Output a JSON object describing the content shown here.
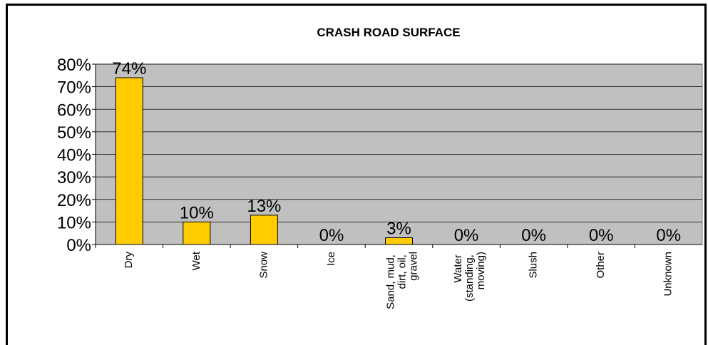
{
  "chart_data": {
    "type": "bar",
    "title": "CRASH ROAD SURFACE",
    "categories": [
      "Dry",
      "Wet",
      "Snow",
      "Ice",
      "Sand, mud, dirt, oil, gravel",
      "Water (standing, moving)",
      "Slush",
      "Other",
      "Unknown"
    ],
    "values": [
      74,
      10,
      13,
      0,
      3,
      0,
      0,
      0,
      0
    ],
    "value_labels": [
      "74%",
      "10%",
      "13%",
      "0%",
      "3%",
      "0%",
      "0%",
      "0%",
      "0%"
    ],
    "color": "#ffcc00",
    "ylim": [
      0,
      80
    ],
    "yticks": [
      {
        "value": 0,
        "label": "0%"
      },
      {
        "value": 10,
        "label": "10%"
      },
      {
        "value": 20,
        "label": "20%"
      },
      {
        "value": 30,
        "label": "30%"
      },
      {
        "value": 40,
        "label": "40%"
      },
      {
        "value": 50,
        "label": "50%"
      },
      {
        "value": 60,
        "label": "60%"
      },
      {
        "value": 70,
        "label": "70%"
      },
      {
        "value": 80,
        "label": "80%"
      }
    ],
    "grid": true
  }
}
